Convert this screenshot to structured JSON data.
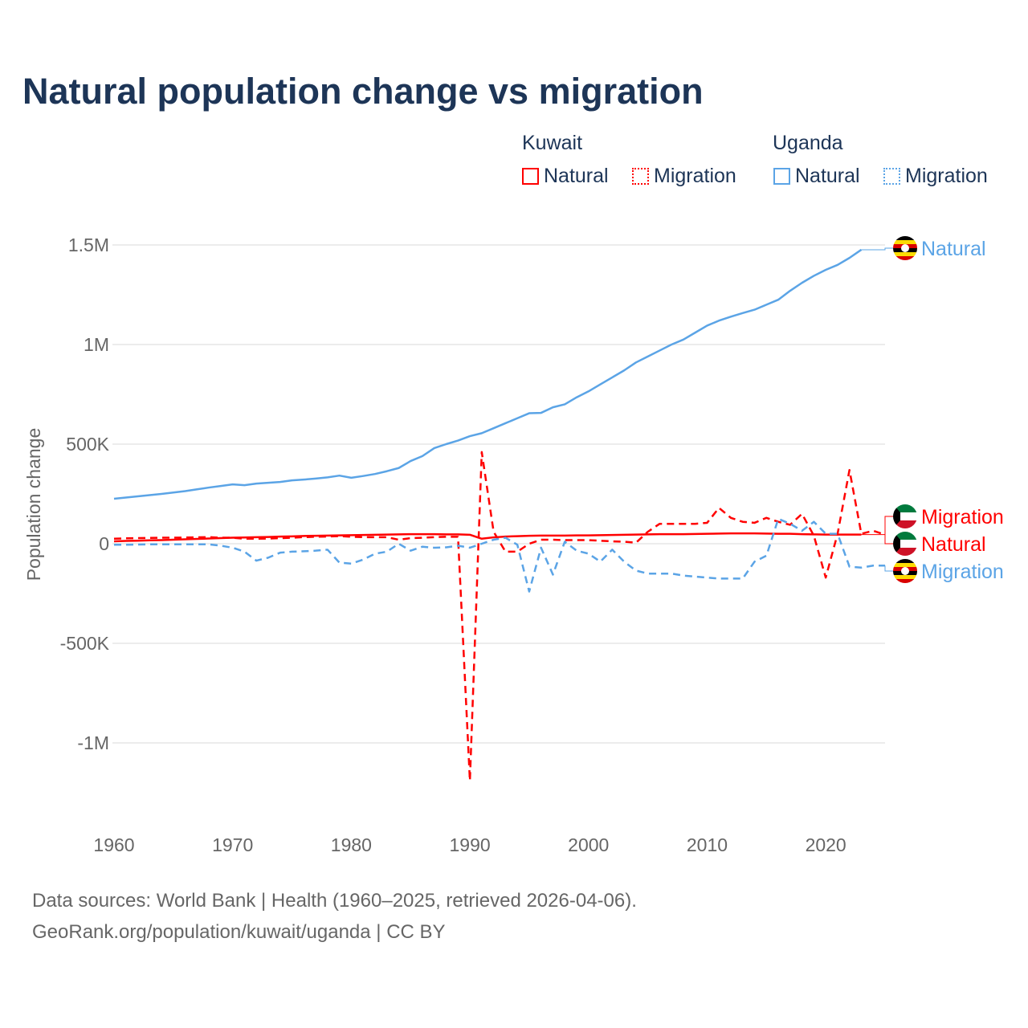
{
  "chart_data": {
    "type": "line",
    "title": "Natural population change vs migration",
    "ylabel": "Population change",
    "xlabel": "",
    "xlim": [
      1960,
      2025
    ],
    "ylim": [
      -1200000,
      1600000
    ],
    "x_ticks": [
      "1960",
      "1970",
      "1980",
      "1990",
      "2000",
      "2010",
      "2020"
    ],
    "y_ticks": [
      {
        "v": 1500000,
        "label": "1.5M"
      },
      {
        "v": 1000000,
        "label": "1M"
      },
      {
        "v": 500000,
        "label": "500K"
      },
      {
        "v": 0,
        "label": "0"
      },
      {
        "v": -500000,
        "label": "-500K"
      },
      {
        "v": -1000000,
        "label": "-1M"
      }
    ],
    "grid": true,
    "legend": {
      "placement": "top-right",
      "groups": [
        {
          "name": "Kuwait",
          "items": [
            "Natural",
            "Migration"
          ]
        },
        {
          "name": "Uganda",
          "items": [
            "Natural",
            "Migration"
          ]
        }
      ]
    },
    "series": [
      {
        "name": "Uganda Natural",
        "country": "Uganda",
        "kind": "Natural",
        "color": "#5ba4e6",
        "dash": "solid",
        "start": 1960,
        "values_k": [
          226,
          232,
          238,
          244,
          250,
          257,
          264,
          273,
          282,
          290,
          298,
          294,
          302,
          306,
          310,
          318,
          322,
          327,
          333,
          342,
          331,
          340,
          350,
          364,
          380,
          415,
          440,
          480,
          500,
          518,
          540,
          555,
          580,
          605,
          630,
          655,
          657,
          685,
          700,
          735,
          765,
          800,
          835,
          870,
          910,
          940,
          970,
          1000,
          1025,
          1060,
          1095,
          1120,
          1140,
          1158,
          1175,
          1200,
          1225,
          1270,
          1310,
          1345,
          1375,
          1400,
          1435,
          1476
        ]
      },
      {
        "name": "Kuwait Migration",
        "country": "Kuwait",
        "kind": "Migration",
        "color": "#ff0000",
        "dash": "dashed",
        "start": 1960,
        "values_k": [
          25,
          27,
          28,
          29,
          30,
          30,
          31,
          32,
          33,
          30,
          30,
          25,
          25,
          26,
          28,
          30,
          33,
          35,
          36,
          38,
          35,
          33,
          33,
          33,
          20,
          28,
          30,
          33,
          35,
          35,
          -1190,
          460,
          60,
          -40,
          -40,
          0,
          20,
          20,
          18,
          18,
          18,
          15,
          12,
          10,
          5,
          60,
          100,
          100,
          100,
          100,
          105,
          180,
          130,
          110,
          105,
          130,
          110,
          95,
          150,
          40,
          -170,
          50,
          370,
          50,
          65,
          45
        ]
      },
      {
        "name": "Kuwait Natural",
        "country": "Kuwait",
        "kind": "Natural",
        "color": "#ff0000",
        "dash": "solid",
        "start": 1960,
        "values_k": [
          12,
          14,
          15,
          17,
          18,
          20,
          22,
          24,
          26,
          28,
          30,
          31,
          33,
          34,
          36,
          37,
          39,
          40,
          41,
          42,
          43,
          44,
          45,
          46,
          47,
          48,
          48,
          48,
          47,
          47,
          45,
          25,
          32,
          36,
          38,
          40,
          41,
          41,
          41,
          42,
          42,
          43,
          44,
          45,
          46,
          47,
          48,
          48,
          48,
          49,
          50,
          51,
          52,
          52,
          52,
          51,
          50,
          50,
          48,
          47,
          46,
          46,
          46,
          46
        ]
      },
      {
        "name": "Uganda Migration",
        "country": "Uganda",
        "kind": "Migration",
        "color": "#5ba4e6",
        "dash": "dashed",
        "start": 1960,
        "values_k": [
          -5,
          -5,
          -4,
          -3,
          -3,
          -3,
          -3,
          -3,
          -3,
          -10,
          -20,
          -40,
          -85,
          -70,
          -45,
          -40,
          -38,
          -35,
          -30,
          -95,
          -100,
          -80,
          -50,
          -40,
          0,
          -35,
          -15,
          -20,
          -18,
          -10,
          -20,
          0,
          20,
          30,
          -5,
          -240,
          -20,
          -155,
          10,
          -35,
          -50,
          -90,
          -30,
          -90,
          -135,
          -150,
          -150,
          -150,
          -160,
          -165,
          -170,
          -175,
          -175,
          -175,
          -90,
          -60,
          125,
          100,
          65,
          110,
          50,
          50,
          -115,
          -120,
          -110,
          -110
        ]
      }
    ],
    "end_labels": [
      {
        "series": "Uganda Natural",
        "text": "Natural",
        "flag": "uganda-flag"
      },
      {
        "series": "Kuwait Migration",
        "text": "Migration",
        "flag": "kuwait-flag"
      },
      {
        "series": "Kuwait Natural",
        "text": "Natural",
        "flag": "kuwait-flag"
      },
      {
        "series": "Uganda Migration",
        "text": "Migration",
        "flag": "uganda-flag"
      }
    ]
  },
  "legend": {
    "kuwait": "Kuwait",
    "uganda": "Uganda",
    "natural": "Natural",
    "migration": "Migration"
  },
  "footer": {
    "line1": "Data sources: World Bank | Health (1960–2025, retrieved 2026-04-06).",
    "line2": "GeoRank.org/population/kuwait/uganda | CC BY"
  },
  "colors": {
    "kuwait": "#ff0000",
    "uganda": "#5ba4e6",
    "title": "#1d3557"
  }
}
